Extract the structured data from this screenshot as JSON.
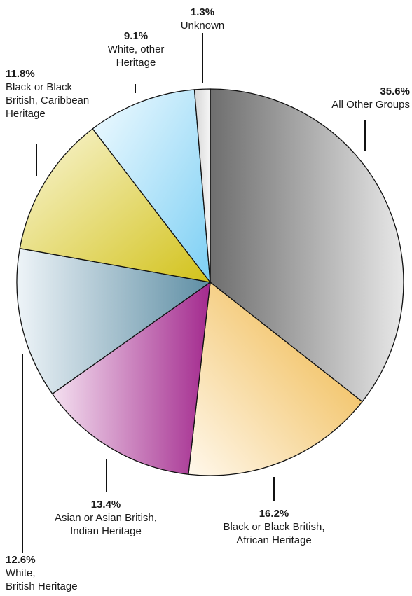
{
  "chart_data": {
    "type": "pie",
    "title": "",
    "slices": [
      {
        "percent_label": "35.6%",
        "value": 35.6,
        "label_lines": [
          "All Other Groups"
        ],
        "color_dark": "#6e6e6e",
        "color_light": "#e8e8e8"
      },
      {
        "percent_label": "16.2%",
        "value": 16.2,
        "label_lines": [
          "Black or Black British,",
          "African Heritage"
        ],
        "color_dark": "#eeb23c",
        "color_light": "#fff8ec"
      },
      {
        "percent_label": "13.4%",
        "value": 13.4,
        "label_lines": [
          "Asian or Asian British,",
          "Indian Heritage"
        ],
        "color_dark": "#a32a8e",
        "color_light": "#f4e0f0"
      },
      {
        "percent_label": "12.6%",
        "value": 12.6,
        "label_lines": [
          "White,",
          "British Heritage"
        ],
        "color_dark": "#5e8ea4",
        "color_light": "#eef4f8"
      },
      {
        "percent_label": "11.8%",
        "value": 11.8,
        "label_lines": [
          "Black or Black",
          "British, Caribbean",
          "Heritage"
        ],
        "color_dark": "#d2c21a",
        "color_light": "#faf6d8"
      },
      {
        "percent_label": "9.1%",
        "value": 9.1,
        "label_lines": [
          "White, other",
          "Heritage"
        ],
        "color_dark": "#7ccff4",
        "color_light": "#f2fbff"
      },
      {
        "percent_label": "1.3%",
        "value": 1.3,
        "label_lines": [
          "Unknown"
        ],
        "color_dark": "#d6d6d6",
        "color_light": "#f6f6f6"
      }
    ]
  }
}
